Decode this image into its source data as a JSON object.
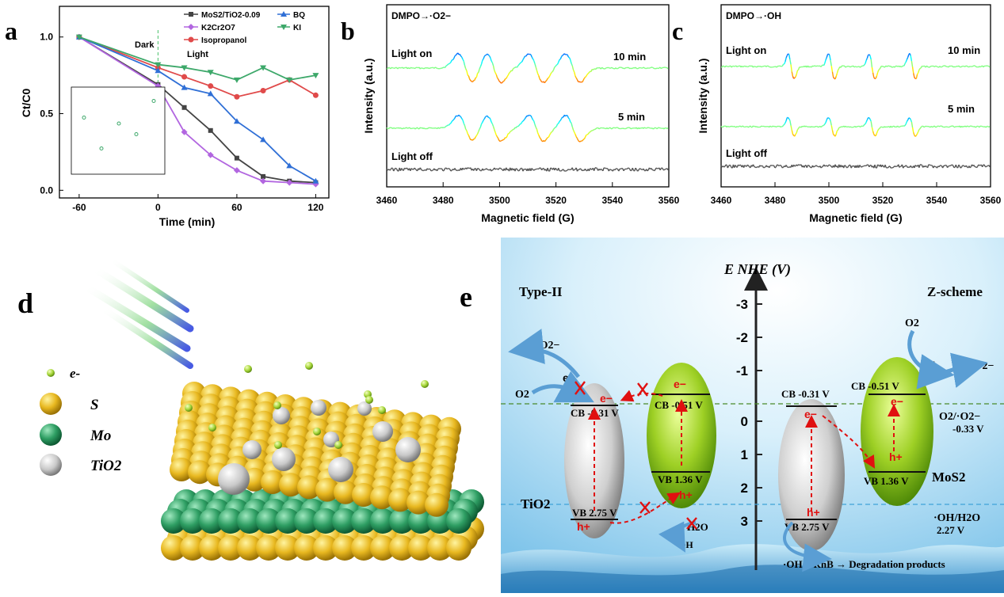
{
  "panels": {
    "a": {
      "letter": "a",
      "title": "",
      "xlabel": "Time (min)",
      "ylabel": "Ct/C0",
      "dark_label": "Dark",
      "light_label": "Light",
      "x_ticks": [
        "-60",
        "0",
        "60",
        "120"
      ],
      "y_ticks": [
        "0.0",
        "0.5",
        "1.0"
      ],
      "legend": [
        "MoS2/TiO2-0.09",
        "BQ",
        "K2Cr2O7",
        "KI",
        "Isopropanol"
      ]
    },
    "b": {
      "letter": "b",
      "title": "DMPO→·O2−",
      "label_on": "Light on",
      "label_off": "Light off",
      "time_10": "10 min",
      "time_5": "5 min",
      "xlabel": "Magnetic field (G)",
      "ylabel": "Intensity (a.u.)",
      "x_ticks": [
        "3460",
        "3480",
        "3500",
        "3520",
        "3540",
        "3560"
      ]
    },
    "c": {
      "letter": "c",
      "title": "DMPO→·OH",
      "label_on": "Light on",
      "label_off": "Light off",
      "time_10": "10 min",
      "time_5": "5 min",
      "xlabel": "Magnetic field (G)",
      "ylabel": "Intensity (a.u.)",
      "x_ticks": [
        "3460",
        "3480",
        "3500",
        "3520",
        "3540",
        "3560"
      ]
    },
    "d": {
      "letter": "d",
      "legend": [
        "e-",
        "S",
        "Mo",
        "TiO2"
      ]
    },
    "e": {
      "letter": "e",
      "axis_title": "E NHE (V)",
      "type2": "Type-II",
      "zscheme": "Z-scheme",
      "axis_ticks": [
        "-3",
        "-2",
        "-1",
        "0",
        "1",
        "2",
        "3"
      ],
      "tio2": "TiO2",
      "mos2": "MoS2",
      "cb_tio2": "CB -0.31 V",
      "cb_mos2": "CB -0.51 V",
      "vb_mos2": "VB 1.36 V",
      "vb_tio2": "VB 2.75 V",
      "o2": "O2",
      "o2_radical": "·O2−",
      "o2_couple": "O2/·O2−",
      "o2_couple_v": "-0.33 V",
      "oh_couple": "·OH/H2O",
      "oh_couple_v": "2.27 V",
      "h2o": "H2O",
      "oh": "·OH",
      "electron": "e−",
      "hole": "h+",
      "degradation": "·OH + RhB → Degradation products"
    }
  },
  "chart_data": [
    {
      "type": "line",
      "panel": "a",
      "xlabel": "Time (min)",
      "ylabel": "Ct/C0",
      "xlim": [
        -75,
        130
      ],
      "ylim": [
        -0.05,
        1.2
      ],
      "x": [
        -60,
        0,
        20,
        40,
        60,
        80,
        100,
        120
      ],
      "series": [
        {
          "name": "MoS2/TiO2-0.09",
          "color": "#444444",
          "values": [
            1.0,
            0.69,
            0.54,
            0.39,
            0.21,
            0.09,
            0.06,
            0.05
          ]
        },
        {
          "name": "K2Cr2O7",
          "color": "#b266e0",
          "values": [
            1.0,
            0.68,
            0.38,
            0.23,
            0.13,
            0.06,
            0.05,
            0.04
          ]
        },
        {
          "name": "Isopropanol",
          "color": "#e04a4a",
          "values": [
            1.0,
            0.8,
            0.74,
            0.68,
            0.61,
            0.65,
            0.72,
            0.62
          ]
        },
        {
          "name": "BQ",
          "color": "#2f6fd6",
          "values": [
            1.0,
            0.78,
            0.67,
            0.63,
            0.45,
            0.33,
            0.16,
            0.06
          ]
        },
        {
          "name": "KI",
          "color": "#3da86a",
          "values": [
            1.0,
            0.82,
            0.8,
            0.77,
            0.72,
            0.8,
            0.72,
            0.75
          ]
        }
      ],
      "inset_points": [
        0.41,
        0.15,
        0.36,
        0.27,
        0.55
      ]
    },
    {
      "type": "line",
      "panel": "b",
      "xlabel": "Magnetic field (G)",
      "ylabel": "Intensity (a.u.)",
      "xlim": [
        3460,
        3560
      ],
      "peaks_G": [
        3488,
        3498,
        3513,
        3526
      ],
      "series": [
        {
          "name": "10 min",
          "amplitude": 1.0
        },
        {
          "name": "5 min",
          "amplitude": 0.9
        },
        {
          "name": "Light off",
          "amplitude": 0.0
        }
      ]
    },
    {
      "type": "line",
      "panel": "c",
      "xlabel": "Magnetic field (G)",
      "ylabel": "Intensity (a.u.)",
      "xlim": [
        3460,
        3560
      ],
      "peaks_G": [
        3486,
        3501,
        3516,
        3531
      ],
      "series": [
        {
          "name": "10 min",
          "amplitude": 1.0
        },
        {
          "name": "5 min",
          "amplitude": 0.75
        },
        {
          "name": "Light off",
          "amplitude": 0.0
        }
      ]
    }
  ]
}
